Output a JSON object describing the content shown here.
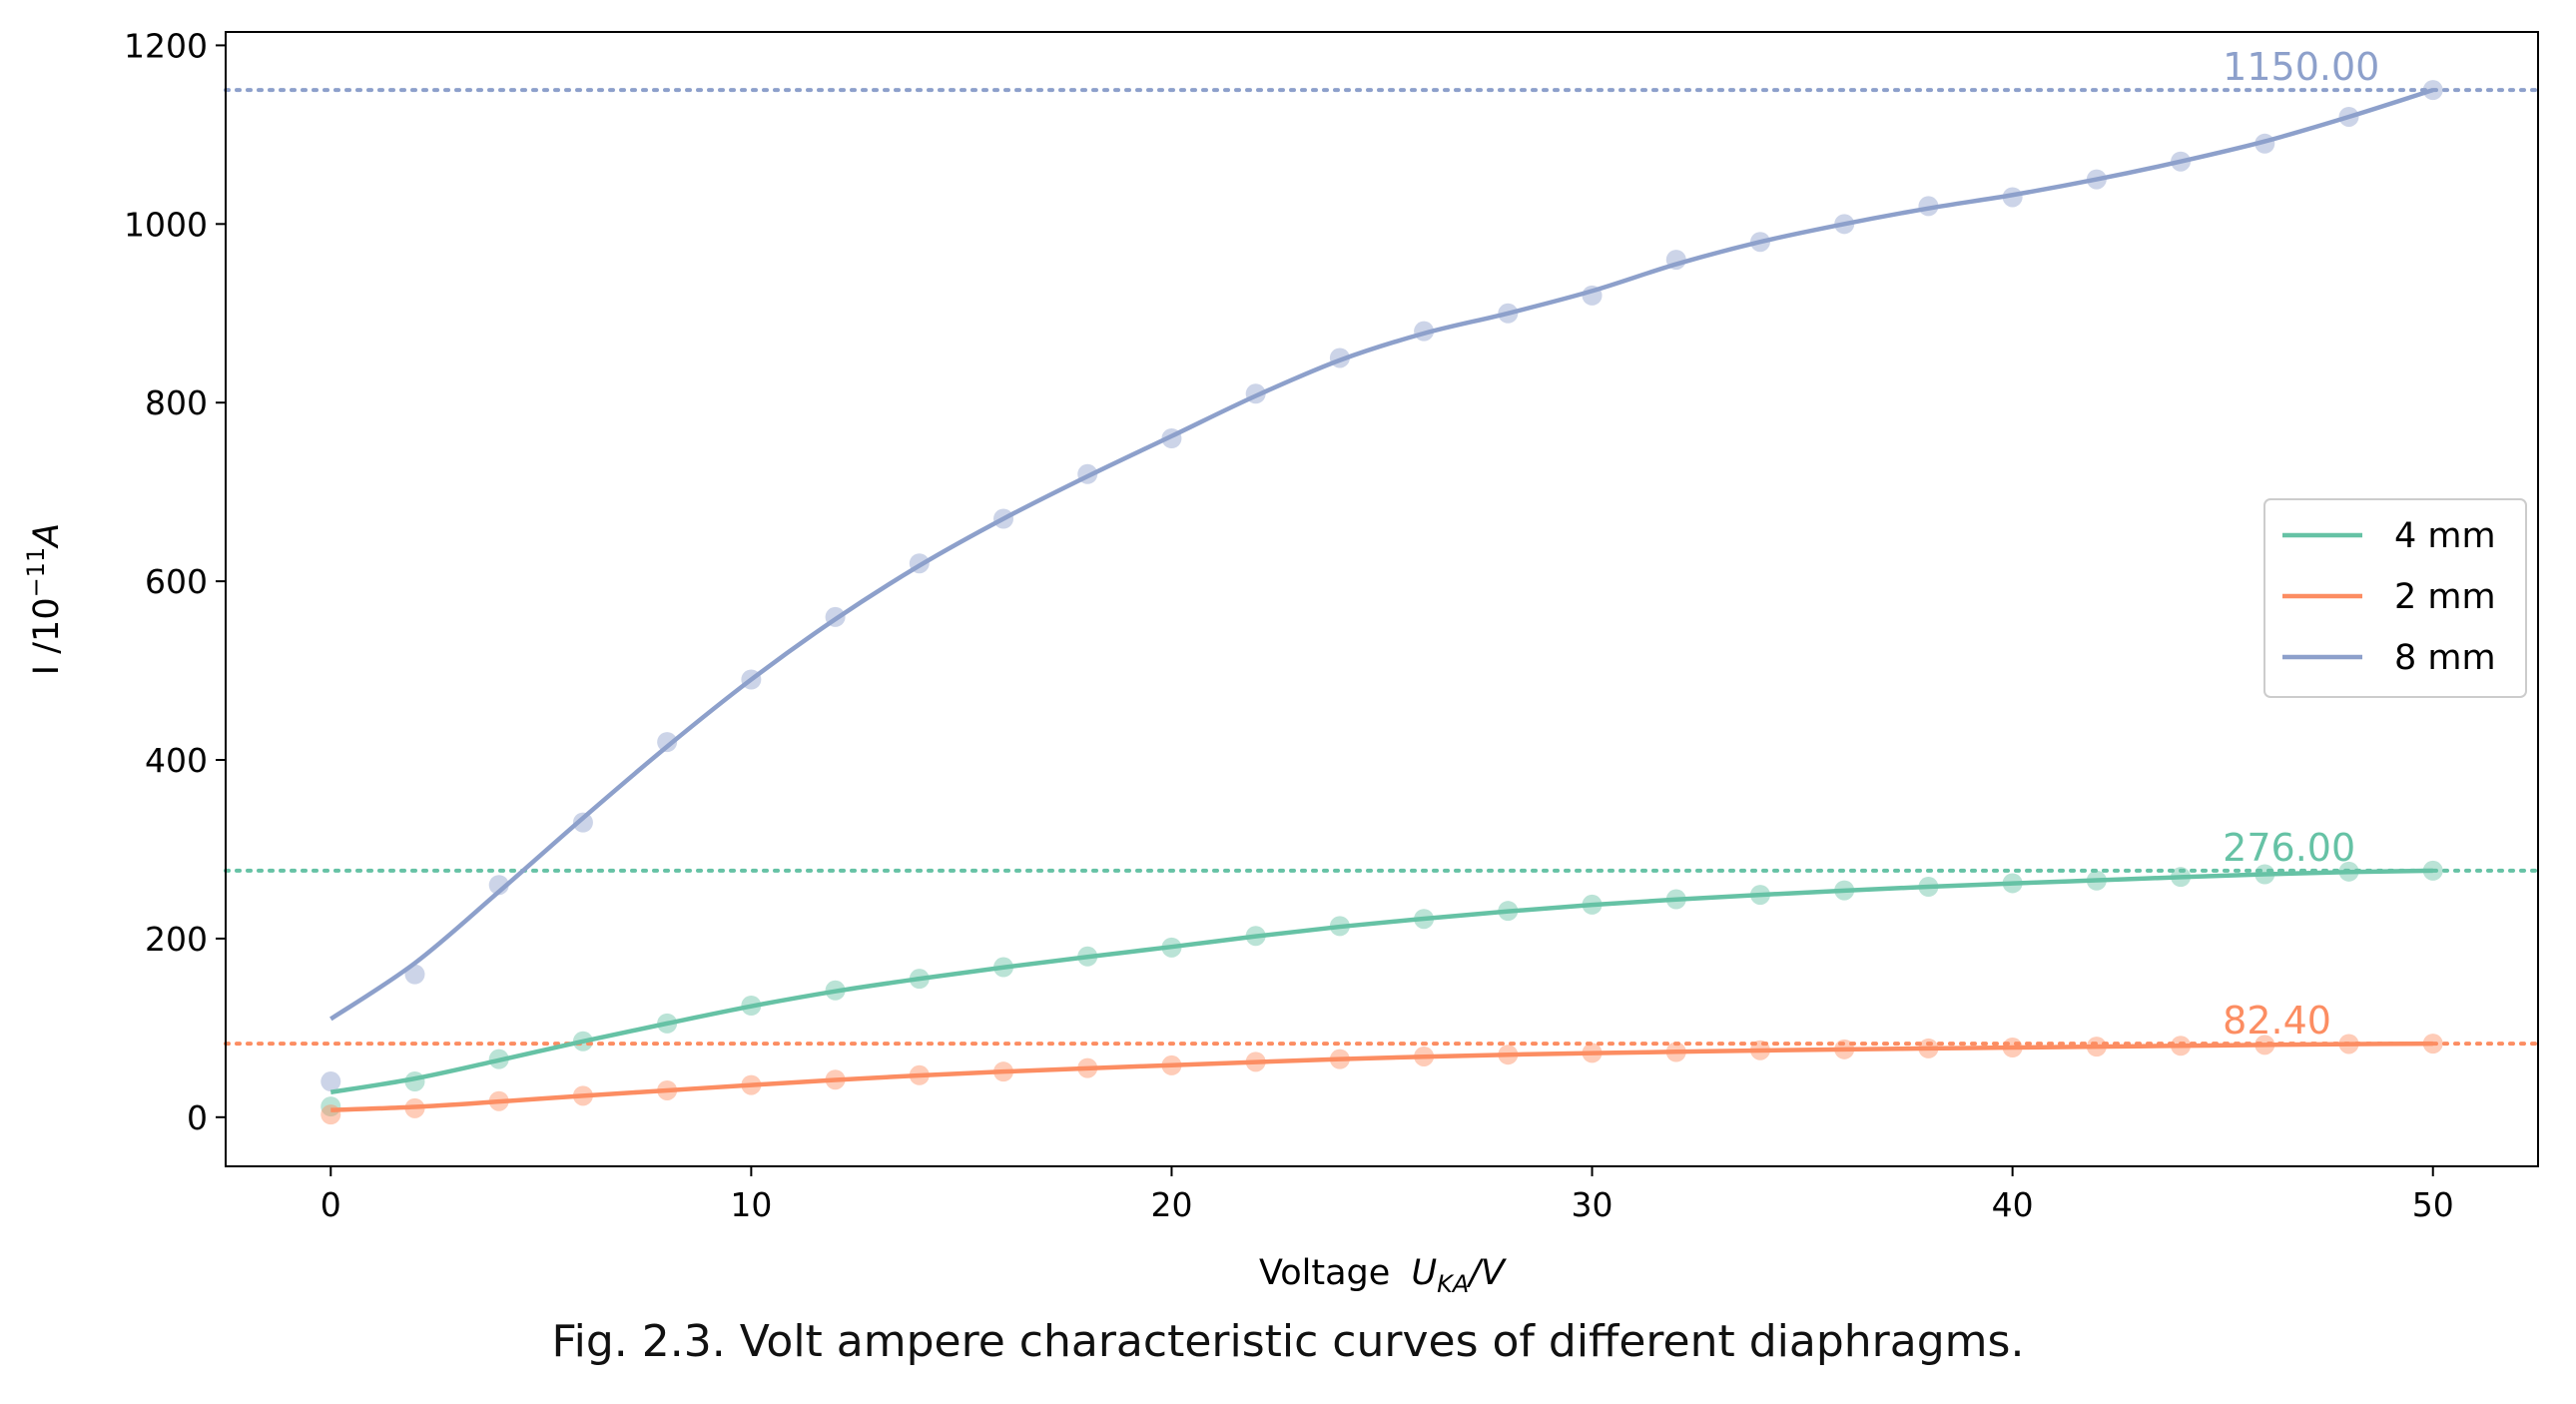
{
  "caption": "Fig. 2.3. Volt ampere characteristic curves of different diaphragms.",
  "chart_data": {
    "type": "line",
    "title": "",
    "xlabel": "Voltage",
    "xlabel_sub": "KA",
    "xlabel_unit": "/V",
    "ylabel": "I /10",
    "ylabel_exp": "−11",
    "ylabel_unit": "A",
    "xlim": [
      -2.5,
      52.5
    ],
    "ylim": [
      -55,
      1215
    ],
    "xticks": [
      0,
      10,
      20,
      30,
      40,
      50
    ],
    "yticks": [
      0,
      200,
      400,
      600,
      800,
      1000,
      1200
    ],
    "grid": false,
    "legend_position": "center-right",
    "x": [
      0,
      2,
      4,
      6,
      8,
      10,
      12,
      14,
      16,
      18,
      20,
      22,
      24,
      26,
      28,
      30,
      32,
      34,
      36,
      38,
      40,
      42,
      44,
      46,
      48,
      50
    ],
    "series": [
      {
        "name": "4 mm",
        "color": "#66c2a5",
        "values": [
          12,
          40,
          65,
          85,
          105,
          125,
          142,
          155,
          168,
          180,
          190,
          203,
          214,
          222,
          231,
          238,
          244,
          249,
          254,
          258,
          262,
          265,
          269,
          272,
          275,
          276
        ],
        "fit_start": 28,
        "saturation": 276.0,
        "saturation_label": "276.00"
      },
      {
        "name": "2 mm",
        "color": "#fc8d62",
        "values": [
          3,
          10,
          18,
          24,
          30,
          36,
          42,
          47,
          51,
          55,
          58,
          62,
          65,
          68,
          70,
          72,
          73,
          75,
          76,
          77,
          78,
          79,
          80,
          81,
          82,
          82.4
        ],
        "fit_start": 8,
        "saturation": 82.4,
        "saturation_label": "82.40"
      },
      {
        "name": "8 mm",
        "color": "#8da0cb",
        "values": [
          40,
          160,
          260,
          330,
          420,
          490,
          560,
          620,
          670,
          720,
          760,
          810,
          850,
          880,
          900,
          920,
          960,
          980,
          1000,
          1020,
          1030,
          1050,
          1070,
          1090,
          1120,
          1150
        ],
        "fit_start": 110,
        "saturation": 1150.0,
        "saturation_label": "1150.00"
      }
    ]
  }
}
